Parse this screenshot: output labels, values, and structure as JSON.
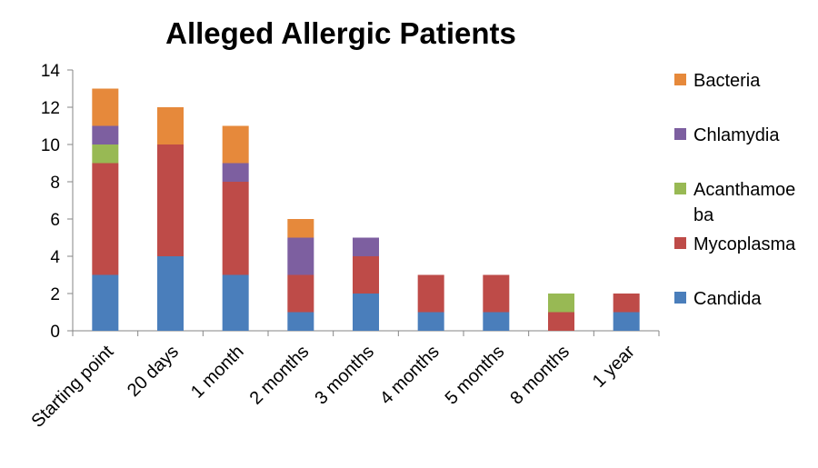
{
  "chart_data": {
    "type": "bar",
    "stacked": true,
    "title": "Alleged Allergic Patients",
    "xlabel": "",
    "ylabel": "",
    "ylim": [
      0,
      14
    ],
    "yticks": [
      0,
      2,
      4,
      6,
      8,
      10,
      12,
      14
    ],
    "grid": false,
    "legend_position": "right",
    "categories": [
      "Starting point",
      "20 days",
      "1 month",
      "2 months",
      "3 months",
      "4 months",
      "5 months",
      "8 months",
      "1 year"
    ],
    "series": [
      {
        "name": "Candida",
        "color": "#4a7ebb",
        "values": [
          3,
          4,
          3,
          1,
          2,
          1,
          1,
          0,
          1
        ]
      },
      {
        "name": "Mycoplasma",
        "color": "#be4b48",
        "values": [
          6,
          6,
          5,
          2,
          2,
          2,
          2,
          1,
          1
        ]
      },
      {
        "name": "Acanthamoeba",
        "color": "#98b954",
        "values": [
          1,
          0,
          0,
          0,
          0,
          0,
          0,
          1,
          0
        ]
      },
      {
        "name": "Chlamydia",
        "color": "#7d5fa0",
        "values": [
          1,
          0,
          1,
          2,
          1,
          0,
          0,
          0,
          0
        ]
      },
      {
        "name": "Bacteria",
        "color": "#e6893b",
        "values": [
          2,
          2,
          2,
          1,
          0,
          0,
          0,
          0,
          0
        ]
      }
    ],
    "legend": [
      {
        "lines": [
          "Bacteria"
        ],
        "color": "#e6893b"
      },
      {
        "lines": [
          "Chlamydia"
        ],
        "color": "#7d5fa0"
      },
      {
        "lines": [
          "Acanthamoe",
          "ba"
        ],
        "color": "#98b954"
      },
      {
        "lines": [
          "Mycoplasma"
        ],
        "color": "#be4b48"
      },
      {
        "lines": [
          "Candida"
        ],
        "color": "#4a7ebb"
      }
    ]
  }
}
